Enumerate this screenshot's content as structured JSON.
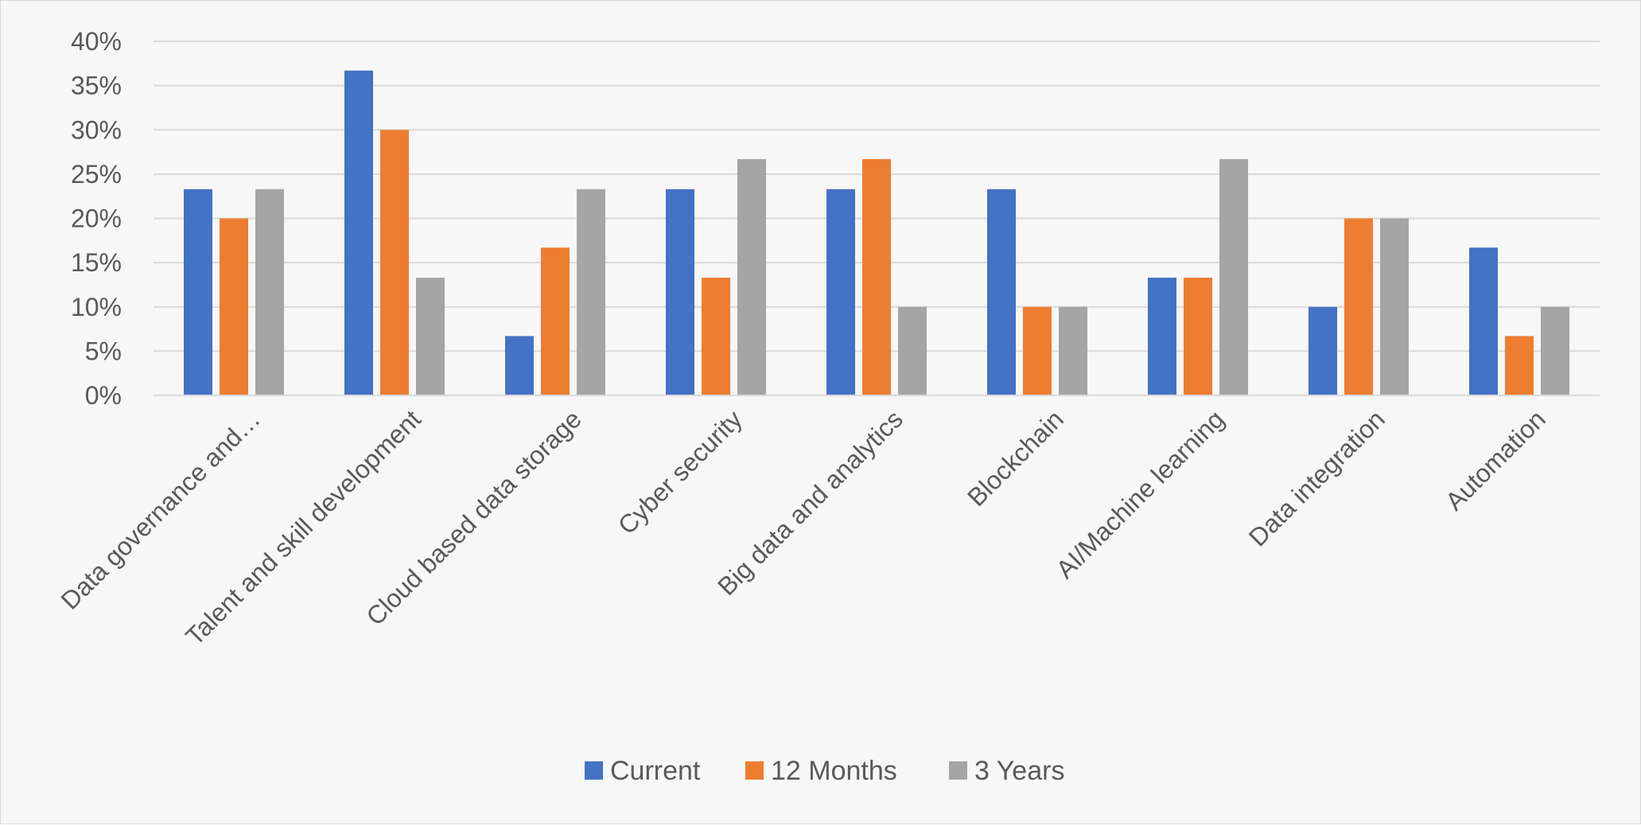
{
  "chart_data": {
    "type": "bar",
    "categories": [
      "Data governance and…",
      "Talent and skill development",
      "Cloud based data storage",
      "Cyber security",
      "Big data and analytics",
      "Blockchain",
      "AI/Machine learning",
      "Data integration",
      "Automation"
    ],
    "series": [
      {
        "name": "Current",
        "color": "#4472c4",
        "values": [
          23.3,
          36.7,
          6.7,
          23.3,
          23.3,
          23.3,
          13.3,
          10.0,
          16.7
        ]
      },
      {
        "name": "12 Months",
        "color": "#ed7d31",
        "values": [
          20.0,
          30.0,
          16.7,
          13.3,
          26.7,
          10.0,
          13.3,
          20.0,
          6.7
        ]
      },
      {
        "name": "3 Years",
        "color": "#a5a5a5",
        "values": [
          23.3,
          13.3,
          23.3,
          26.7,
          10.0,
          10.0,
          26.7,
          20.0,
          10.0
        ]
      }
    ],
    "y_ticks": [
      "0%",
      "5%",
      "10%",
      "15%",
      "20%",
      "25%",
      "30%",
      "35%",
      "40%"
    ],
    "ylim": [
      0,
      40
    ],
    "title": "",
    "xlabel": "",
    "ylabel": "",
    "grid": true,
    "legend_position": "bottom"
  }
}
